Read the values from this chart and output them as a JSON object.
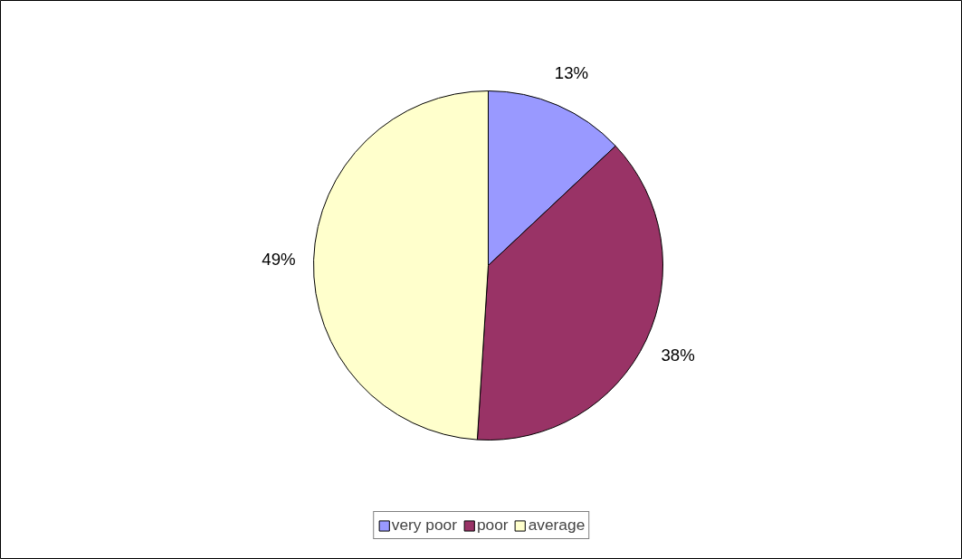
{
  "chart_data": {
    "type": "pie",
    "categories": [
      "very poor",
      "poor",
      "average"
    ],
    "values": [
      13,
      38,
      49
    ],
    "colors": [
      "#9999ff",
      "#993366",
      "#ffffcc"
    ],
    "value_labels": [
      "13%",
      "38%",
      "49%"
    ],
    "legend": "bottom"
  }
}
